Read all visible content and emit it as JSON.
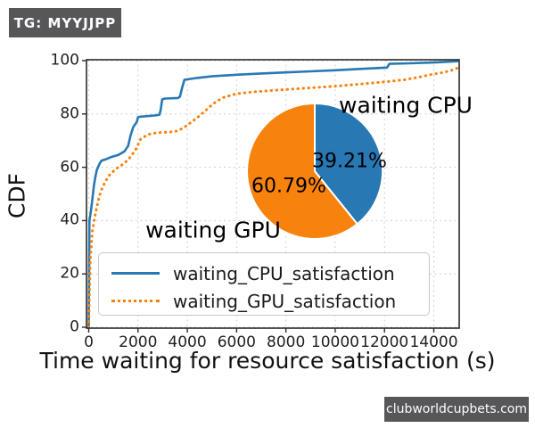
{
  "badges": {
    "tg": "TG: MYYJJPP",
    "watermark": "clubworldcupbets.com"
  },
  "chart_data": {
    "type": "line",
    "title": "",
    "xlabel": "Time waiting for resource satisfaction (s)",
    "ylabel": "CDF",
    "xlim": [
      0,
      15000
    ],
    "ylim": [
      0,
      100
    ],
    "xticks": [
      0,
      2000,
      4000,
      6000,
      8000,
      10000,
      12000,
      14000
    ],
    "yticks": [
      0,
      20,
      40,
      60,
      80,
      100
    ],
    "grid": true,
    "legend_position": "lower left",
    "series": [
      {
        "name": "waiting_CPU_satisfaction",
        "color": "#2878b4",
        "style": "solid",
        "points": [
          [
            0,
            0
          ],
          [
            30,
            40
          ],
          [
            80,
            43
          ],
          [
            150,
            48
          ],
          [
            210,
            53
          ],
          [
            270,
            56.5
          ],
          [
            330,
            59
          ],
          [
            450,
            61.5
          ],
          [
            520,
            62.5
          ],
          [
            700,
            63
          ],
          [
            900,
            63.8
          ],
          [
            1200,
            64.6
          ],
          [
            1450,
            66
          ],
          [
            1600,
            68
          ],
          [
            1700,
            72
          ],
          [
            1800,
            75
          ],
          [
            1950,
            77
          ],
          [
            2000,
            78.8
          ],
          [
            2100,
            79
          ],
          [
            2650,
            79.4
          ],
          [
            2870,
            79.7
          ],
          [
            2920,
            81.5
          ],
          [
            2980,
            85.5
          ],
          [
            3100,
            85.8
          ],
          [
            3620,
            86
          ],
          [
            3700,
            86.5
          ],
          [
            3780,
            89.5
          ],
          [
            3880,
            92.8
          ],
          [
            4400,
            93.5
          ],
          [
            5000,
            94.1
          ],
          [
            6000,
            94.7
          ],
          [
            7000,
            95.2
          ],
          [
            8000,
            95.6
          ],
          [
            9000,
            96
          ],
          [
            10000,
            96.4
          ],
          [
            11000,
            96.9
          ],
          [
            12100,
            97.4
          ],
          [
            12200,
            98.8
          ],
          [
            13000,
            99
          ],
          [
            14000,
            99.3
          ],
          [
            14800,
            99.7
          ],
          [
            15000,
            99.8
          ]
        ]
      },
      {
        "name": "waiting_GPU_satisfaction",
        "color": "#f8820e",
        "style": "dotted",
        "points": [
          [
            0,
            0
          ],
          [
            60,
            25
          ],
          [
            150,
            36
          ],
          [
            220,
            40
          ],
          [
            280,
            43
          ],
          [
            340,
            45.5
          ],
          [
            400,
            48
          ],
          [
            460,
            50
          ],
          [
            540,
            52
          ],
          [
            640,
            54
          ],
          [
            760,
            56
          ],
          [
            880,
            57.5
          ],
          [
            1060,
            59
          ],
          [
            1240,
            60.3
          ],
          [
            1420,
            61.3
          ],
          [
            1660,
            63.5
          ],
          [
            1900,
            66.5
          ],
          [
            2100,
            70.5
          ],
          [
            2400,
            72.3
          ],
          [
            2800,
            73
          ],
          [
            3300,
            73.2
          ],
          [
            3600,
            73.6
          ],
          [
            3850,
            74.8
          ],
          [
            4100,
            76.5
          ],
          [
            4350,
            78.2
          ],
          [
            4650,
            80.5
          ],
          [
            4950,
            83
          ],
          [
            5200,
            84.8
          ],
          [
            5500,
            86.3
          ],
          [
            6000,
            87.6
          ],
          [
            6600,
            88.2
          ],
          [
            7400,
            88.8
          ],
          [
            8200,
            89.3
          ],
          [
            9000,
            89.8
          ],
          [
            10000,
            90.4
          ],
          [
            11000,
            91.2
          ],
          [
            12000,
            92
          ],
          [
            12800,
            92.8
          ],
          [
            13400,
            93.8
          ],
          [
            13900,
            94.8
          ],
          [
            14400,
            95.6
          ],
          [
            14800,
            96.6
          ],
          [
            15000,
            97.4
          ]
        ]
      }
    ],
    "inset_pie": {
      "type": "pie",
      "start_angle_deg": 90,
      "direction": "clockwise",
      "slices": [
        {
          "label": "waiting CPU",
          "value": 39.21,
          "display": "39.21%",
          "color": "#2878b4"
        },
        {
          "label": "waiting GPU",
          "value": 60.79,
          "display": "60.79%",
          "color": "#f8820e"
        }
      ]
    }
  }
}
